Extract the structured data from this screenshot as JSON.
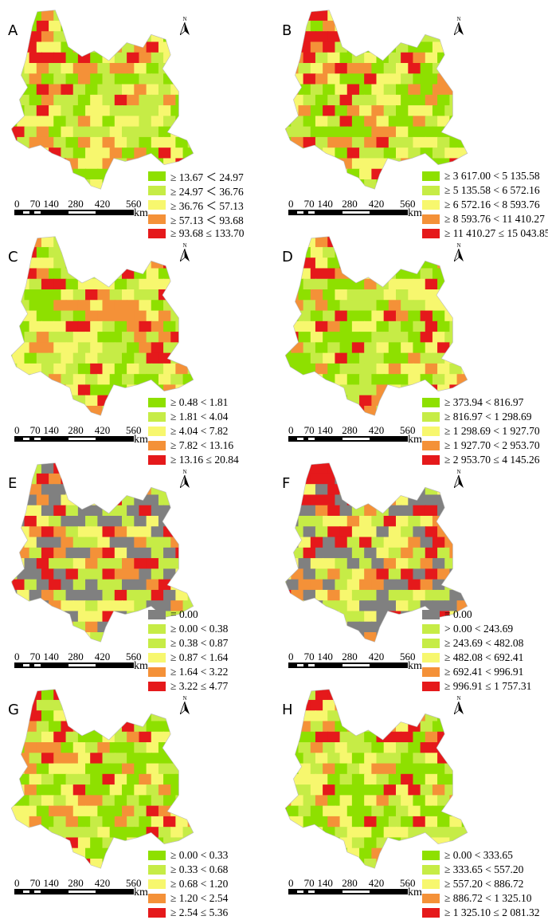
{
  "colors": {
    "c1": "#8ee000",
    "c2": "#c6ec46",
    "c3": "#f7f76e",
    "c4": "#f49138",
    "c5": "#e5191b",
    "zero": "#808080"
  },
  "north_label": "N",
  "scale": {
    "ticks": [
      "0",
      "70",
      "140",
      "280",
      "420",
      "560"
    ],
    "unit": "km"
  },
  "panels": [
    {
      "label": "A",
      "legend": [
        "≥ 13.67 ＜ 24.97",
        "≥ 24.97 ＜ 36.76",
        "≥ 36.76 ＜ 57.13",
        "≥ 57.13 ＜ 93.68",
        "≥ 93.68 ≤ 133.70"
      ],
      "colors": [
        "c1",
        "c2",
        "c3",
        "c4",
        "c5"
      ]
    },
    {
      "label": "B",
      "legend": [
        "≥ 3 617.00 < 5 135.58",
        "≥ 5 135.58 < 6 572.16",
        "≥ 6 572.16 < 8 593.76",
        "≥ 8 593.76 < 11 410.27",
        "≥ 11 410.27 ≤ 15 043.85"
      ],
      "colors": [
        "c1",
        "c2",
        "c3",
        "c4",
        "c5"
      ]
    },
    {
      "label": "C",
      "legend": [
        "≥ 0.48 < 1.81",
        "≥ 1.81 < 4.04",
        "≥ 4.04 < 7.82",
        "≥ 7.82 < 13.16",
        "≥ 13.16 ≤ 20.84"
      ],
      "colors": [
        "c1",
        "c2",
        "c3",
        "c4",
        "c5"
      ]
    },
    {
      "label": "D",
      "legend": [
        "≥ 373.94 < 816.97",
        "≥ 816.97 < 1 298.69",
        "≥ 1 298.69 < 1 927.70",
        "≥ 1 927.70 < 2 953.70",
        "≥ 2 953.70 ≤ 4 145.26"
      ],
      "colors": [
        "c1",
        "c2",
        "c3",
        "c4",
        "c5"
      ]
    },
    {
      "label": "E",
      "legend": [
        "= 0.00",
        "≥ 0.00 < 0.38",
        "≥ 0.38 < 0.87",
        "≥ 0.87 < 1.64",
        "≥ 1.64 < 3.22",
        "≥ 3.22 ≤ 4.77"
      ],
      "colors": [
        "zero",
        "c2",
        "c2",
        "c3",
        "c4",
        "c5"
      ]
    },
    {
      "label": "F",
      "legend": [
        "= 0.00",
        "> 0.00 < 243.69",
        "≥ 243.69 < 482.08",
        "≥ 482.08 < 692.41",
        "≥ 692.41 < 996.91",
        "≥ 996.91 ≤ 1 757.31"
      ],
      "colors": [
        "zero",
        "c2",
        "c2",
        "c3",
        "c4",
        "c5"
      ]
    },
    {
      "label": "G",
      "legend": [
        "≥ 0.00 < 0.33",
        "≥ 0.33 < 0.68",
        "≥ 0.68 < 1.20",
        "≥ 1.20 < 2.54",
        "≥ 2.54 ≤ 5.36"
      ],
      "colors": [
        "c1",
        "c2",
        "c3",
        "c4",
        "c5"
      ]
    },
    {
      "label": "H",
      "legend": [
        "≥ 0.00 < 333.65",
        "≥ 333.65 < 557.20",
        "≥ 557.20 < 886.72",
        "≥ 886.72 < 1 325.10",
        "≥ 1 325.10 ≤ 2 081.32"
      ],
      "colors": [
        "c1",
        "c2",
        "c3",
        "c4",
        "c5"
      ]
    }
  ]
}
